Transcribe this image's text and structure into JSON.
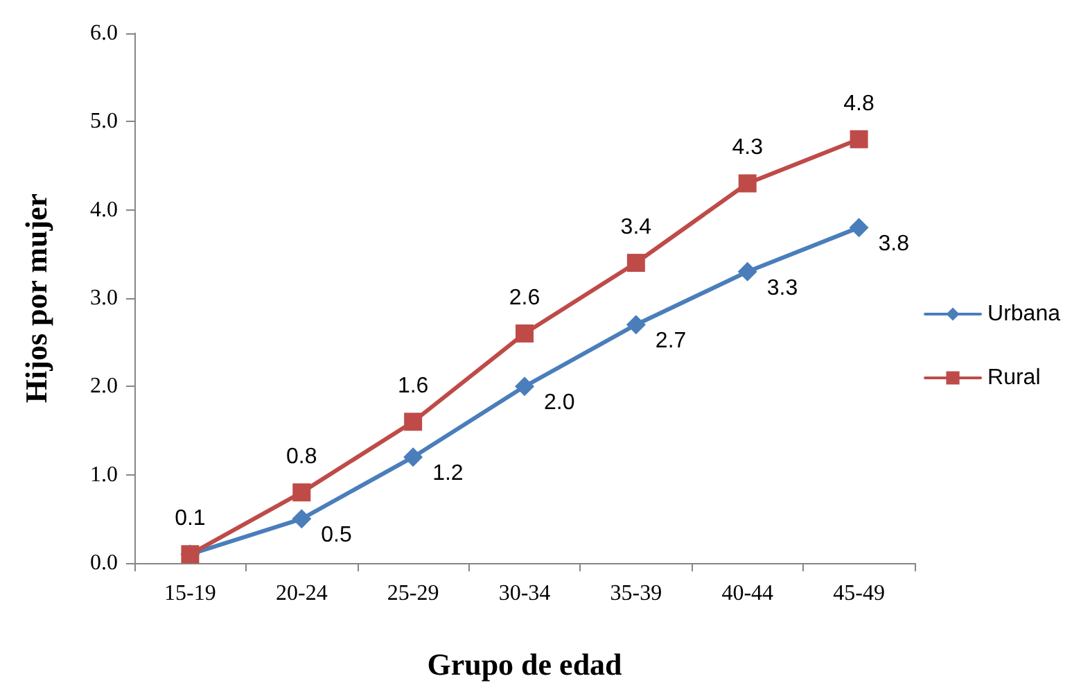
{
  "chart_data": {
    "type": "line",
    "xlabel": "Grupo de edad",
    "ylabel": "Hijos por mujer",
    "categories": [
      "15-19",
      "20-24",
      "25-29",
      "30-34",
      "35-39",
      "40-44",
      "45-49"
    ],
    "series": [
      {
        "name": "Urbana",
        "color": "#4a7ebb",
        "marker": "diamond",
        "values": [
          0.1,
          0.5,
          1.2,
          2.0,
          2.7,
          3.3,
          3.8
        ],
        "value_labels": [
          null,
          "0.5",
          "1.2",
          "2.0",
          "2.7",
          "3.3",
          "3.8"
        ]
      },
      {
        "name": "Rural",
        "color": "#be4b48",
        "marker": "square",
        "values": [
          0.1,
          0.8,
          1.6,
          2.6,
          3.4,
          4.3,
          4.8
        ],
        "value_labels": [
          "0.1",
          "0.8",
          "1.6",
          "2.6",
          "3.4",
          "4.3",
          "4.8"
        ]
      }
    ],
    "ylim": [
      0,
      6
    ],
    "yticks": [
      {
        "value": 0,
        "label": "0.0"
      },
      {
        "value": 1,
        "label": "1.0"
      },
      {
        "value": 2,
        "label": "2.0"
      },
      {
        "value": 3,
        "label": "3.0"
      },
      {
        "value": 4,
        "label": "4.0"
      },
      {
        "value": 5,
        "label": "5.0"
      },
      {
        "value": 6,
        "label": "6.0"
      }
    ],
    "grid": false,
    "legend": "right",
    "line_style": "solid"
  }
}
